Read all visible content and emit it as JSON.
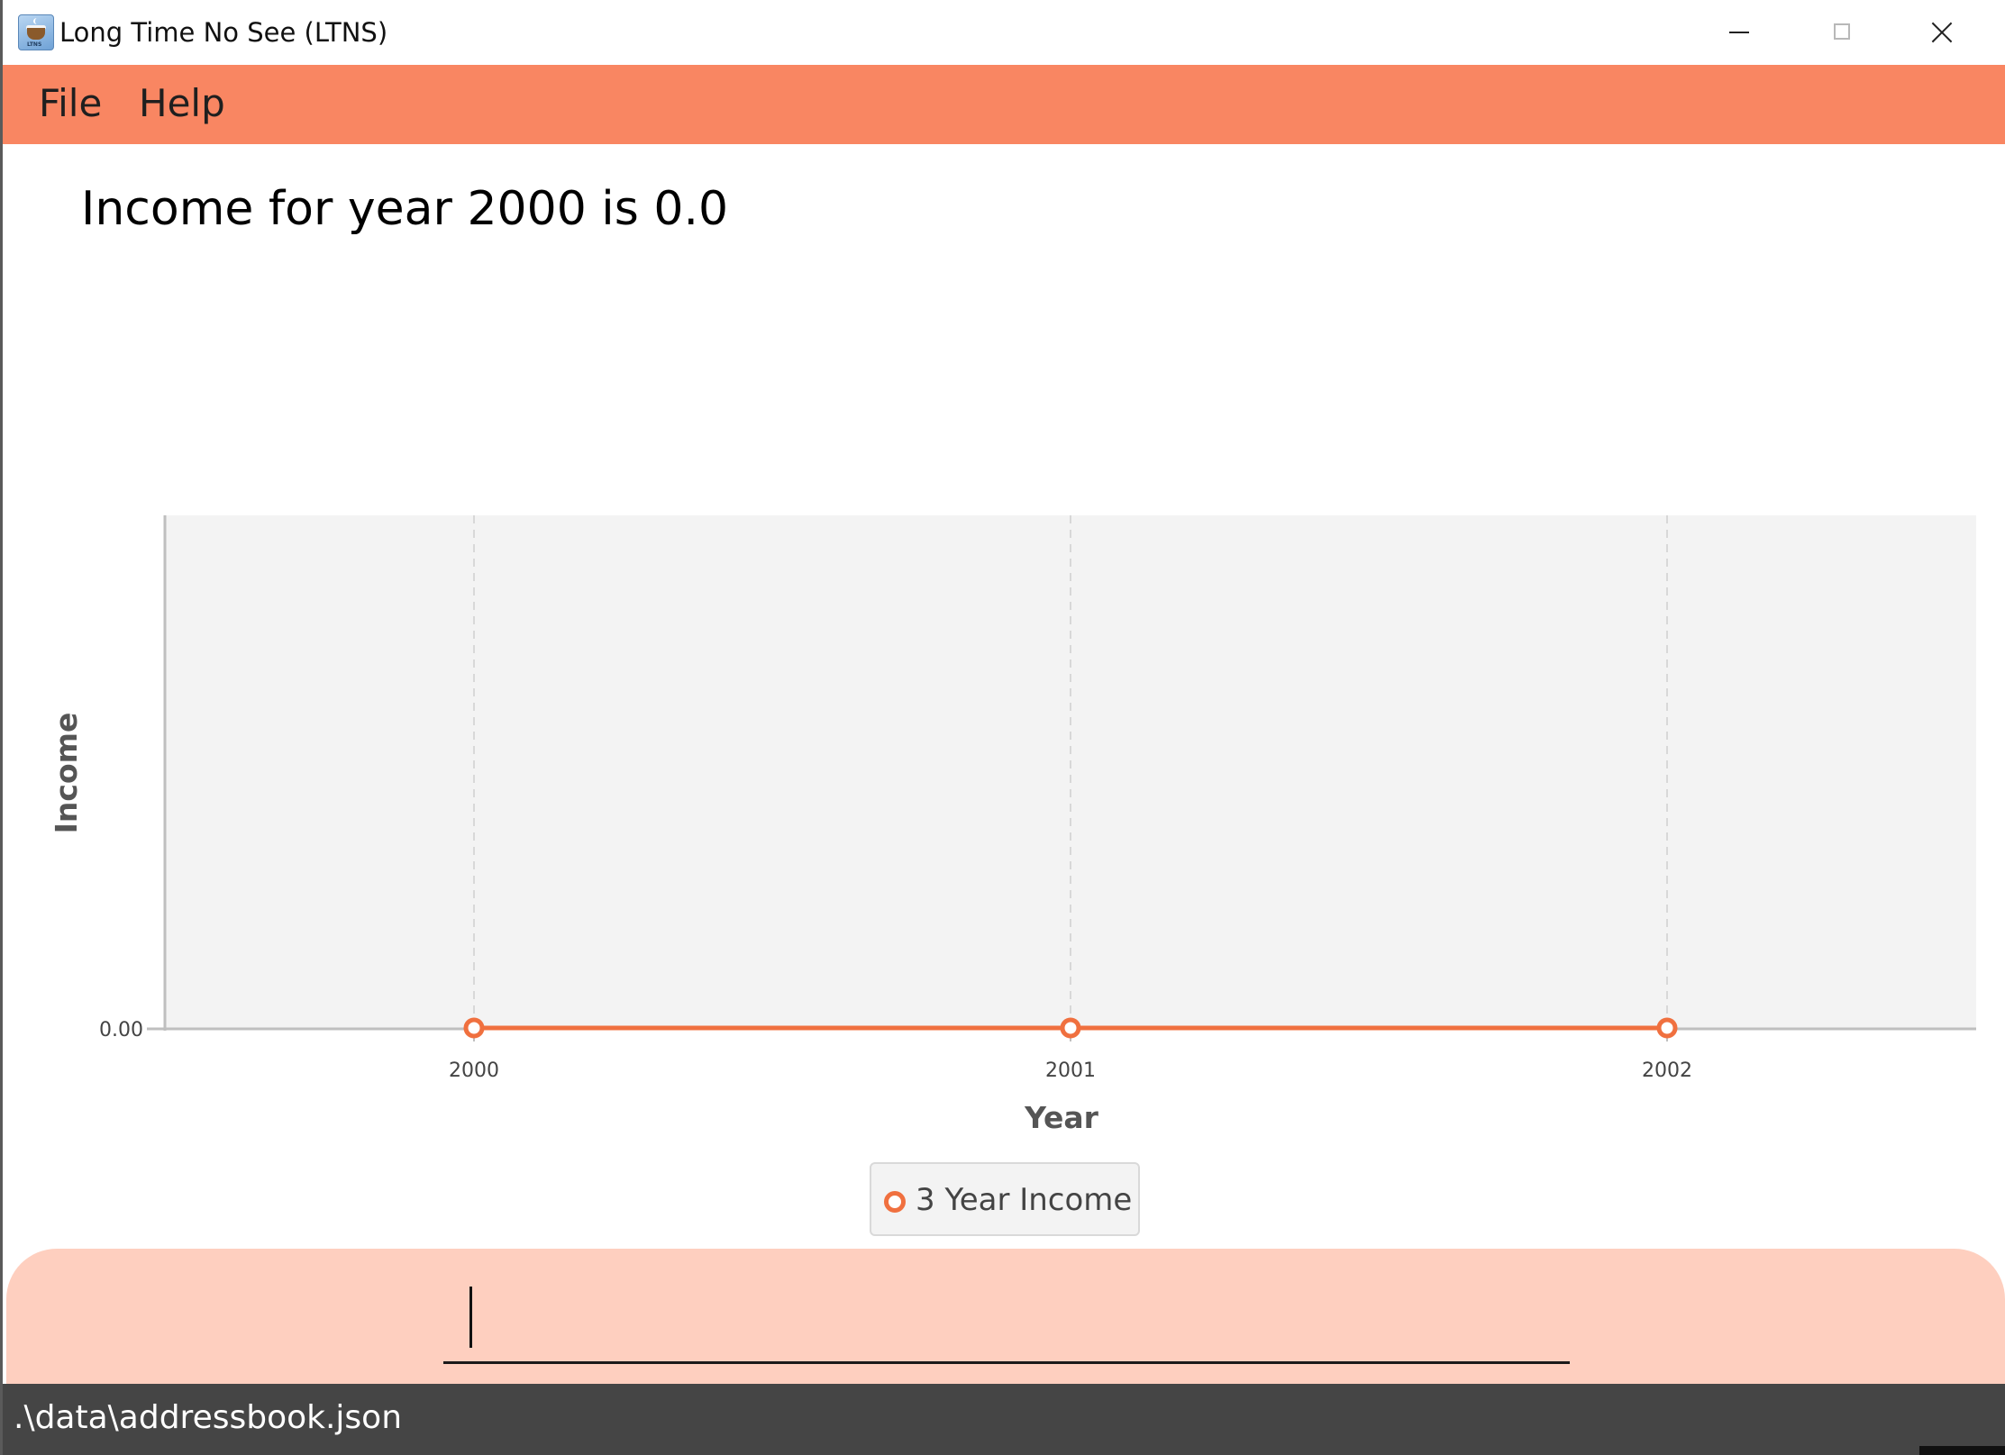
{
  "window": {
    "title": "Long Time No See (LTNS)",
    "icon": "coffee-cup-app-icon",
    "icon_tag": "LTNS",
    "controls": [
      "minimize-icon",
      "maximize-icon",
      "close-icon"
    ]
  },
  "menu": {
    "file_label": "File",
    "help_label": "Help"
  },
  "result": {
    "message": "Income for year 2000 is 0.0"
  },
  "chart_data": {
    "type": "line",
    "title": "",
    "xlabel": "Year",
    "ylabel": "Income",
    "categories": [
      "2000",
      "2001",
      "2002"
    ],
    "y_ticks": [
      "0.00"
    ],
    "series": [
      {
        "name": "3 Year Income",
        "values": [
          0.0,
          0.0,
          0.0
        ]
      }
    ],
    "ylim": [
      0,
      1
    ],
    "grid": {
      "vertical": true,
      "horizontal": false
    },
    "legend_position": "bottom-center",
    "colors": {
      "series": "#f0703f",
      "plot_background": "#f3f3f3",
      "grid": "#d8d8d8"
    }
  },
  "legend": {
    "label": "3 Year Income"
  },
  "command": {
    "value": "",
    "placeholder": ""
  },
  "status": {
    "file_path": ".\\data\\addressbook.json"
  },
  "theme": {
    "menu_bar": "#f98662",
    "command_area": "#fecfbf",
    "status_bar": "#454545",
    "accent": "#f0703f"
  }
}
